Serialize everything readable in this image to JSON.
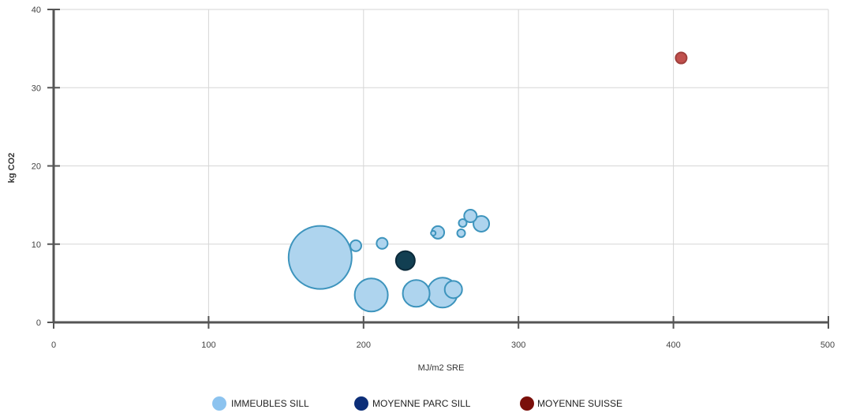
{
  "chart_data": {
    "type": "scatter",
    "xlabel": "MJ/m2 SRE",
    "ylabel": "kg CO2",
    "xlim": [
      0,
      500
    ],
    "ylim": [
      0,
      40
    ],
    "x_ticks": [
      0,
      100,
      200,
      300,
      400,
      500
    ],
    "y_ticks": [
      0,
      10,
      20,
      30,
      40
    ],
    "grid": true,
    "legend_position": "bottom-center",
    "series": [
      {
        "name": "IMMEUBLES SILL",
        "legend_color": "#8cc3ef",
        "fill": "#aed4ee",
        "stroke": "#3d94bd",
        "points": [
          {
            "x": 172,
            "y": 8.3,
            "size": 40
          },
          {
            "x": 195,
            "y": 9.8,
            "size": 7
          },
          {
            "x": 212,
            "y": 10.1,
            "size": 7
          },
          {
            "x": 205,
            "y": 3.5,
            "size": 21
          },
          {
            "x": 234,
            "y": 3.7,
            "size": 17
          },
          {
            "x": 251,
            "y": 3.8,
            "size": 19
          },
          {
            "x": 258,
            "y": 4.2,
            "size": 11
          },
          {
            "x": 245,
            "y": 11.4,
            "size": 3
          },
          {
            "x": 248,
            "y": 11.5,
            "size": 8
          },
          {
            "x": 263,
            "y": 11.4,
            "size": 5
          },
          {
            "x": 264,
            "y": 12.7,
            "size": 5
          },
          {
            "x": 269,
            "y": 13.6,
            "size": 8
          },
          {
            "x": 276,
            "y": 12.6,
            "size": 10
          }
        ]
      },
      {
        "name": "MOYENNE PARC SILL",
        "legend_color": "#0c2e78",
        "fill": "#123f52",
        "stroke": "#0b2a3a",
        "points": [
          {
            "x": 227,
            "y": 7.9,
            "size": 12
          }
        ]
      },
      {
        "name": "MOYENNE SUISSE",
        "legend_color": "#7a0f0a",
        "fill": "#c0504d",
        "stroke": "#a03f3c",
        "points": [
          {
            "x": 405,
            "y": 33.8,
            "size": 7
          }
        ]
      }
    ]
  }
}
